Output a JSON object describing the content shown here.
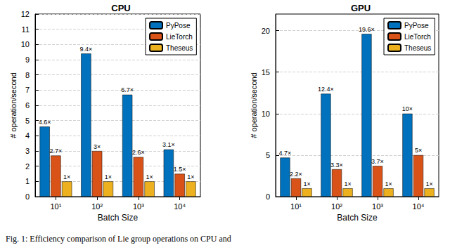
{
  "caption": "Fig. 1: Efficiency comparison of Lie group operations on CPU and",
  "chart_data": [
    {
      "type": "bar",
      "title": "CPU",
      "x_label": "Batch Size",
      "y_label": "# operation/second",
      "categories": [
        "10¹",
        "10²",
        "10³",
        "10⁴"
      ],
      "series": [
        {
          "name": "PyPose",
          "color": "#0072BD",
          "values": [
            4.6,
            9.4,
            6.7,
            3.1
          ],
          "value_labels": [
            "4.6×",
            "9.4×",
            "6.7×",
            "3.1×"
          ]
        },
        {
          "name": "LieTorch",
          "color": "#D95319",
          "values": [
            2.7,
            3,
            2.6,
            1.5
          ],
          "value_labels": [
            "2.7×",
            "3×",
            "2.6×",
            "1.5×"
          ]
        },
        {
          "name": "Theseus",
          "color": "#EDB120",
          "values": [
            1,
            1,
            1,
            1
          ],
          "value_labels": [
            "1×",
            "1×",
            "1×",
            "1×"
          ]
        }
      ],
      "ylim": [
        0,
        12
      ],
      "yticks": [
        0,
        1,
        2,
        3,
        4,
        5,
        6,
        7,
        8,
        9,
        10,
        11,
        12
      ],
      "grid": true,
      "legend": "upper right",
      "data_labels": true
    },
    {
      "type": "bar",
      "title": "GPU",
      "x_label": "Batch Size",
      "y_label": "# operation/second",
      "categories": [
        "10¹",
        "10²",
        "10³",
        "10⁴"
      ],
      "series": [
        {
          "name": "PyPose",
          "color": "#0072BD",
          "values": [
            4.7,
            12.4,
            19.6,
            10
          ],
          "value_labels": [
            "4.7×",
            "12.4×",
            "19.6×",
            "10×"
          ]
        },
        {
          "name": "LieTorch",
          "color": "#D95319",
          "values": [
            2.2,
            3.3,
            3.7,
            5
          ],
          "value_labels": [
            "2.2×",
            "3.3×",
            "3.7×",
            "5×"
          ]
        },
        {
          "name": "Theseus",
          "color": "#EDB120",
          "values": [
            1,
            1,
            1,
            1
          ],
          "value_labels": [
            "1×",
            "1×",
            "1×",
            "1×"
          ]
        }
      ],
      "ylim": [
        0,
        22
      ],
      "yticks": [
        0,
        5,
        10,
        15,
        20
      ],
      "grid": true,
      "legend": "upper right",
      "data_labels": true
    }
  ]
}
